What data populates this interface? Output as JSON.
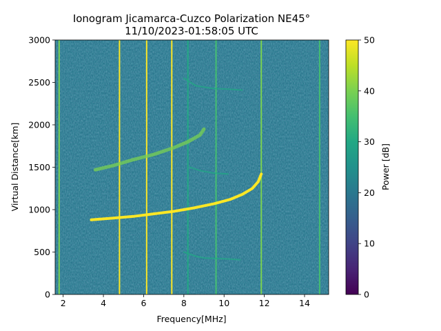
{
  "chart_data": {
    "type": "heatmap",
    "title_line1": "Ionogram Jicamarca-Cuzco Polarization NE45°",
    "title_line2": "11/10/2023-01:58:05 UTC",
    "xlabel": "Frequency[MHz]",
    "ylabel": "Virtual Distance[km]",
    "xlim": [
      1.6,
      15.2
    ],
    "ylim": [
      0,
      3000
    ],
    "xticks": [
      2,
      4,
      6,
      8,
      10,
      12,
      14
    ],
    "yticks": [
      0,
      500,
      1000,
      1500,
      2000,
      2500,
      3000
    ],
    "colorbar": {
      "label": "Power [dB]",
      "range": [
        0,
        50
      ],
      "ticks": [
        0,
        10,
        20,
        30,
        40,
        50
      ],
      "colormap": "viridis"
    },
    "background_power_db": 22,
    "interference_lines": [
      {
        "freq_mhz": 1.8,
        "power_db": 38
      },
      {
        "freq_mhz": 4.8,
        "power_db": 50
      },
      {
        "freq_mhz": 6.15,
        "power_db": 48
      },
      {
        "freq_mhz": 7.4,
        "power_db": 50
      },
      {
        "freq_mhz": 8.2,
        "power_db": 30
      },
      {
        "freq_mhz": 9.6,
        "power_db": 36
      },
      {
        "freq_mhz": 11.85,
        "power_db": 42
      },
      {
        "freq_mhz": 14.75,
        "power_db": 36
      }
    ],
    "traces": [
      {
        "name": "F-layer echo",
        "power_db": 50,
        "points": [
          [
            3.4,
            880
          ],
          [
            4.5,
            900
          ],
          [
            5.5,
            920
          ],
          [
            6.5,
            950
          ],
          [
            7.5,
            980
          ],
          [
            8.5,
            1020
          ],
          [
            9.5,
            1070
          ],
          [
            10.3,
            1120
          ],
          [
            10.9,
            1180
          ],
          [
            11.4,
            1250
          ],
          [
            11.7,
            1330
          ],
          [
            11.85,
            1420
          ]
        ]
      },
      {
        "name": "second hop echo",
        "power_db": 40,
        "points": [
          [
            3.6,
            1470
          ],
          [
            4.5,
            1520
          ],
          [
            5.5,
            1590
          ],
          [
            6.5,
            1650
          ],
          [
            7.5,
            1730
          ],
          [
            8.2,
            1800
          ],
          [
            8.8,
            1880
          ],
          [
            9.0,
            1950
          ]
        ]
      },
      {
        "name": "faint lower echo",
        "power_db": 30,
        "points": [
          [
            8.0,
            500
          ],
          [
            8.6,
            450
          ],
          [
            9.0,
            430
          ],
          [
            10.0,
            420
          ],
          [
            10.8,
            410
          ]
        ]
      },
      {
        "name": "faint mid echo",
        "power_db": 30,
        "points": [
          [
            8.3,
            1500
          ],
          [
            8.8,
            1460
          ],
          [
            9.5,
            1430
          ],
          [
            10.2,
            1420
          ]
        ]
      },
      {
        "name": "faint upper echo",
        "power_db": 30,
        "points": [
          [
            8.0,
            2550
          ],
          [
            8.6,
            2460
          ],
          [
            9.4,
            2430
          ],
          [
            10.2,
            2420
          ],
          [
            10.9,
            2410
          ]
        ]
      }
    ]
  }
}
